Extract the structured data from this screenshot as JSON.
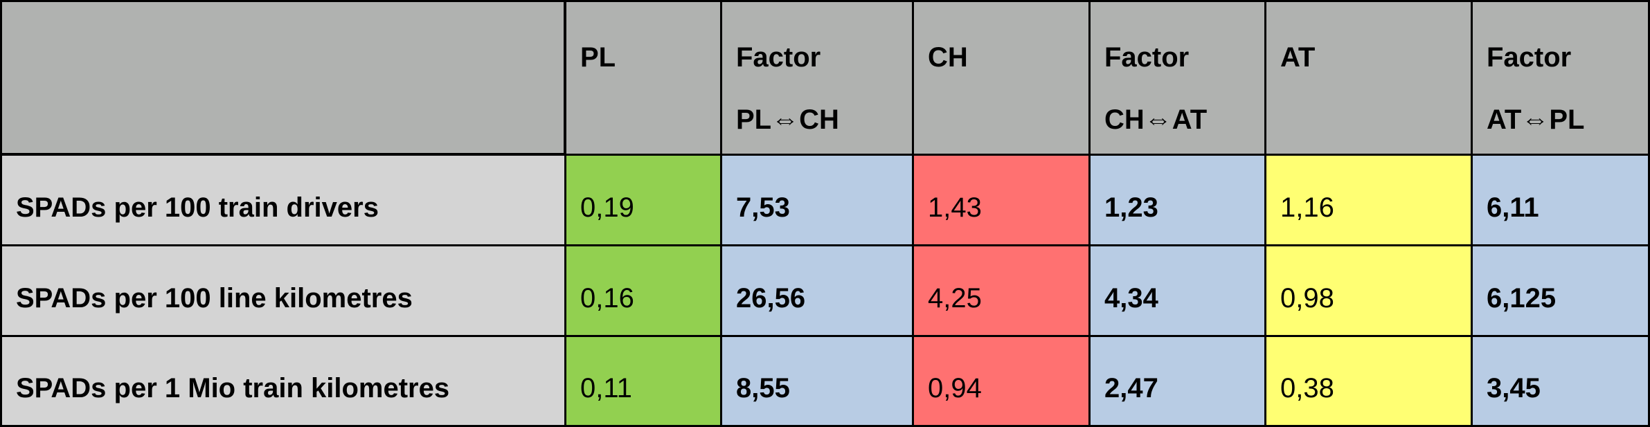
{
  "table": {
    "header": [
      {
        "lines": [
          "PL"
        ]
      },
      {
        "lines": [
          "Factor",
          "PL⇔CH"
        ]
      },
      {
        "lines": [
          "CH"
        ]
      },
      {
        "lines": [
          "Factor",
          "CH⇔AT"
        ]
      },
      {
        "lines": [
          "AT"
        ]
      },
      {
        "lines": [
          "Factor",
          "AT⇔PL"
        ]
      }
    ],
    "rows": [
      {
        "label": "SPADs per 100 train drivers",
        "cells": [
          "0,19",
          "7,53",
          "1,43",
          "1,23",
          "1,16",
          "6,11"
        ]
      },
      {
        "label": "SPADs per 100 line kilometres",
        "cells": [
          "0,16",
          "26,56",
          "4,25",
          "4,34",
          "0,98",
          "6,125"
        ]
      },
      {
        "label": "SPADs per 1 Mio train kilometres",
        "cells": [
          "0,11",
          "8,55",
          "0,94",
          "2,47",
          "0,38",
          "3,45"
        ]
      }
    ]
  }
}
